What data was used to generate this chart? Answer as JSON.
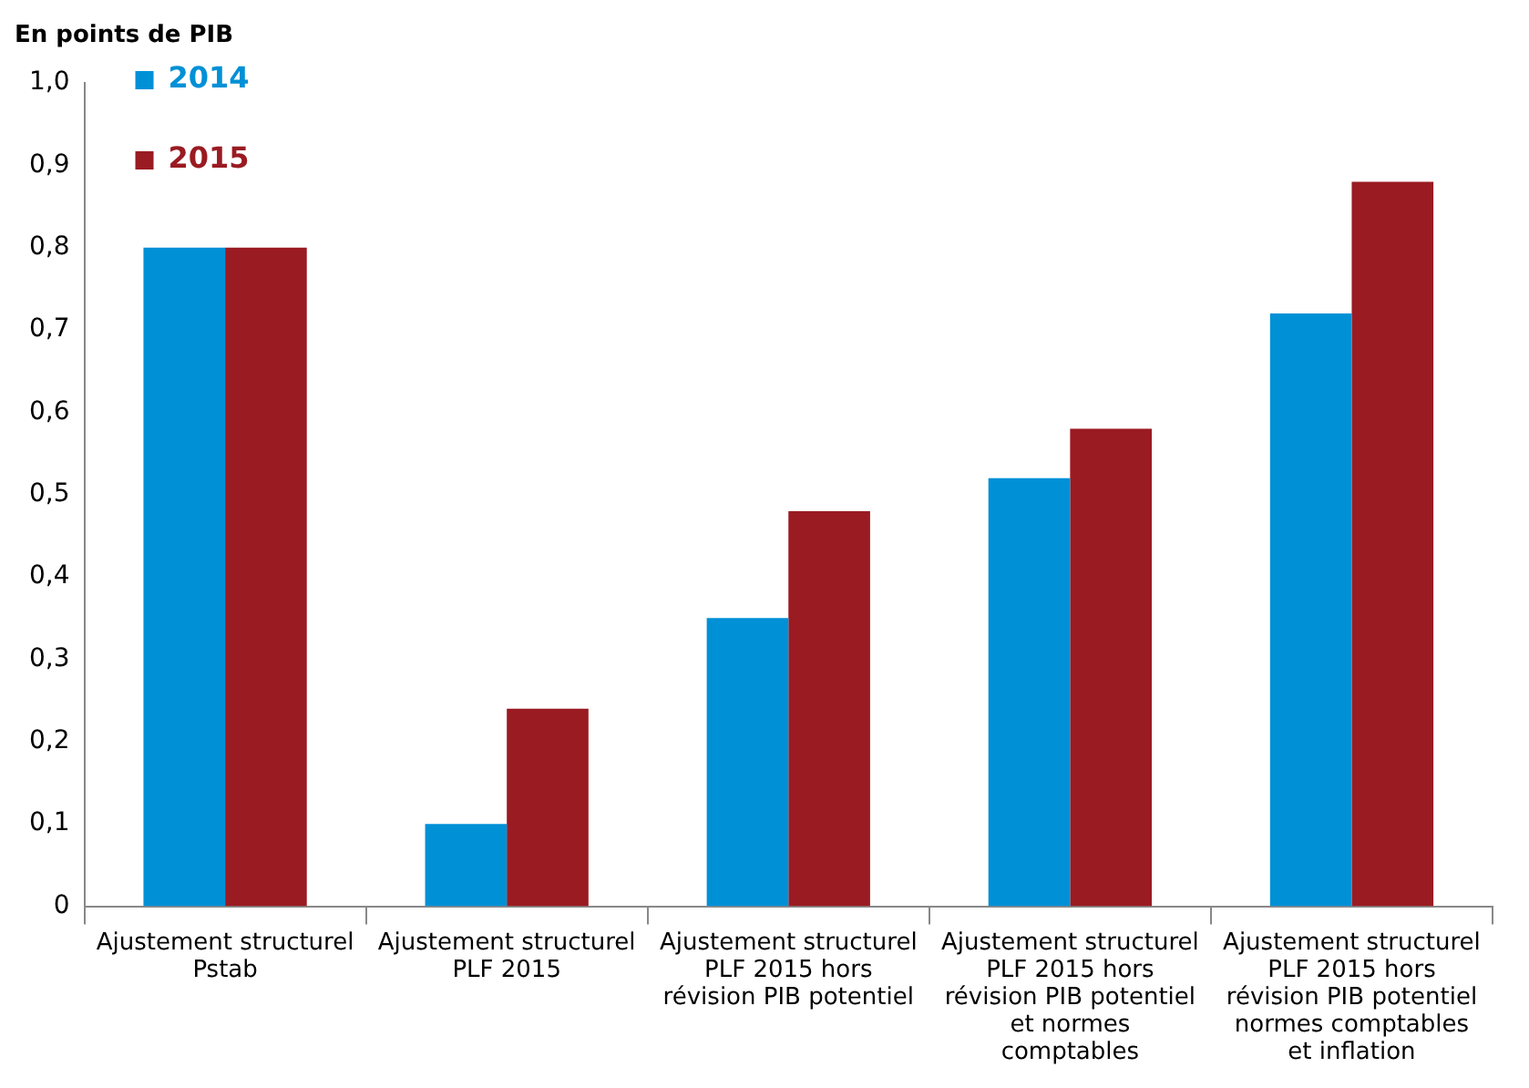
{
  "chart_data": {
    "type": "bar",
    "title": "En points de PIB",
    "categories": [
      "Ajustement structurel Pstab",
      "Ajustement structurel PLF 2015",
      "Ajustement structurel PLF 2015 hors révision PIB potentiel",
      "Ajustement structurel PLF 2015 hors révision PIB potentiel et normes comptables",
      "Ajustement structurel PLF 2015 hors révision PIB potentiel normes comptables et inflation"
    ],
    "series": [
      {
        "name": "2014",
        "color": "#0090d6",
        "values": [
          0.8,
          0.1,
          0.35,
          0.52,
          0.72
        ]
      },
      {
        "name": "2015",
        "color": "#9a1b22",
        "values": [
          0.8,
          0.24,
          0.48,
          0.58,
          0.88
        ]
      }
    ],
    "ylim": [
      0,
      1
    ],
    "yticks": [
      0,
      {
        "value": 0.1,
        "label": "0,1"
      },
      {
        "value": 0.2,
        "label": "0,2"
      },
      {
        "value": 0.3,
        "label": "0,3"
      },
      {
        "value": 0.4,
        "label": "0,4"
      },
      {
        "value": 0.5,
        "label": "0,5"
      },
      {
        "value": 0.6,
        "label": "0,6"
      },
      {
        "value": 0.7,
        "label": "0,7"
      },
      {
        "value": 0.8,
        "label": "0,8"
      },
      {
        "value": 0.9,
        "label": "0,9"
      },
      {
        "value": 1,
        "label": "1,0"
      }
    ],
    "grid": false,
    "legend": "top left"
  }
}
